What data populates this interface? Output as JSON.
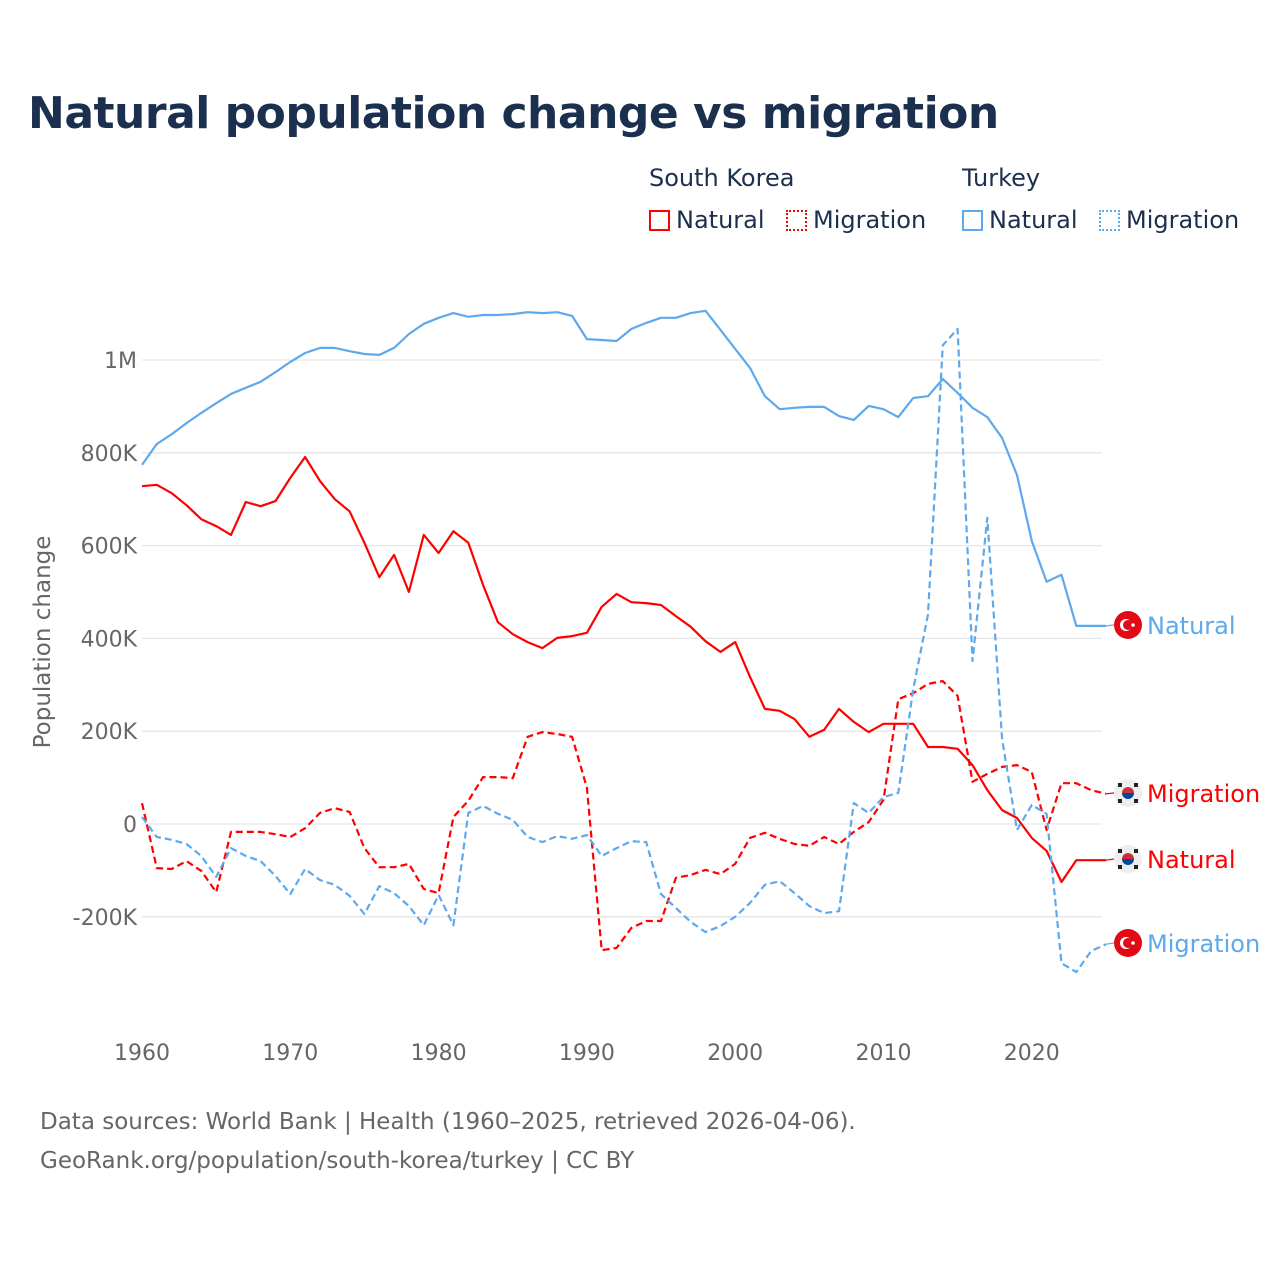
{
  "colors": {
    "south_korea": "#ff0000",
    "turkey": "#5ea8ec",
    "title": "#1b2f4e",
    "grid": "#e6e6e6",
    "axis_text": "#666666"
  },
  "legend": {
    "groups": [
      {
        "name": "South Korea",
        "items": [
          {
            "label": "Natural",
            "style": "solid"
          },
          {
            "label": "Migration",
            "style": "dotted"
          }
        ]
      },
      {
        "name": "Turkey",
        "items": [
          {
            "label": "Natural",
            "style": "solid"
          },
          {
            "label": "Migration",
            "style": "dotted"
          }
        ]
      }
    ]
  },
  "footer": {
    "line1": "Data sources: World Bank | Health (1960–2025, retrieved 2026-04-06).",
    "line2": "GeoRank.org/population/south-korea/turkey | CC BY"
  },
  "chart_data": {
    "type": "line",
    "title": "Natural population change vs migration",
    "xlabel": "",
    "ylabel": "Population change",
    "xlim": [
      1960,
      2025
    ],
    "ylim": [
      -400000,
      1150000
    ],
    "grid": true,
    "x_ticks": [
      1960,
      1970,
      1980,
      1990,
      2000,
      2010,
      2020
    ],
    "y_ticks": [
      {
        "v": -200000,
        "label": "-200K"
      },
      {
        "v": 0,
        "label": "0"
      },
      {
        "v": 200000,
        "label": "200K"
      },
      {
        "v": 400000,
        "label": "400K"
      },
      {
        "v": 600000,
        "label": "600K"
      },
      {
        "v": 800000,
        "label": "800K"
      },
      {
        "v": 1000000,
        "label": "1M"
      }
    ],
    "x_start": 1960,
    "series": [
      {
        "name": "Turkey Natural",
        "country": "turkey",
        "kind": "natural",
        "end_label": "Natural",
        "dashed": false,
        "values": [
          774000,
          819000,
          840000,
          864000,
          886000,
          907000,
          927000,
          940000,
          953000,
          974000,
          996000,
          1015000,
          1026000,
          1026000,
          1019000,
          1013000,
          1011000,
          1026000,
          1056000,
          1078000,
          1091000,
          1101000,
          1093000,
          1097000,
          1097000,
          1099000,
          1103000,
          1101000,
          1103000,
          1095000,
          1045000,
          1043000,
          1041000,
          1067000,
          1080000,
          1091000,
          1091000,
          1101000,
          1106000,
          1065000,
          1024000,
          983000,
          922000,
          894000,
          897000,
          899000,
          899000,
          879000,
          871000,
          901000,
          894000,
          877000,
          918000,
          922000,
          959000,
          929000,
          897000,
          877000,
          832000,
          752000,
          610000,
          522000,
          537000,
          427000,
          427000,
          427000
        ]
      },
      {
        "name": "South Korea Natural",
        "country": "south_korea",
        "kind": "natural",
        "end_label": "Natural",
        "dashed": false,
        "values": [
          728000,
          731000,
          713000,
          687000,
          657000,
          642000,
          623000,
          694000,
          685000,
          696000,
          746000,
          791000,
          739000,
          700000,
          674000,
          606000,
          532000,
          580000,
          500000,
          623000,
          584000,
          631000,
          606000,
          515000,
          435000,
          409000,
          392000,
          379000,
          401000,
          405000,
          412000,
          468000,
          496000,
          478000,
          476000,
          472000,
          448000,
          425000,
          394000,
          371000,
          392000,
          317000,
          248000,
          244000,
          226000,
          188000,
          203000,
          248000,
          220000,
          198000,
          216000,
          216000,
          216000,
          166000,
          166000,
          162000,
          127000,
          73000,
          30000,
          13000,
          -30000,
          -58000,
          -125000,
          -78000,
          -78000,
          -78000
        ]
      },
      {
        "name": "South Korea Migration",
        "country": "south_korea",
        "kind": "migration",
        "end_label": "Migration",
        "dashed": true,
        "values": [
          45000,
          -95000,
          -97000,
          -80000,
          -101000,
          -147000,
          -17000,
          -17000,
          -17000,
          -22000,
          -28000,
          -9000,
          24000,
          34000,
          26000,
          -52000,
          -93000,
          -93000,
          -86000,
          -140000,
          -149000,
          15000,
          50000,
          101000,
          101000,
          99000,
          188000,
          198000,
          194000,
          188000,
          78000,
          -272000,
          -267000,
          -224000,
          -209000,
          -209000,
          -116000,
          -110000,
          -99000,
          -108000,
          -86000,
          -30000,
          -19000,
          -32000,
          -43000,
          -47000,
          -28000,
          -43000,
          -17000,
          4000,
          52000,
          269000,
          282000,
          302000,
          308000,
          276000,
          91000,
          108000,
          123000,
          127000,
          112000,
          -13000,
          88000,
          88000,
          73000,
          65000
        ]
      },
      {
        "name": "Turkey Migration",
        "country": "turkey",
        "kind": "migration",
        "end_label": "Migration",
        "dashed": true,
        "values": [
          15000,
          -28000,
          -34000,
          -43000,
          -69000,
          -114000,
          -52000,
          -69000,
          -80000,
          -112000,
          -151000,
          -97000,
          -121000,
          -131000,
          -155000,
          -194000,
          -134000,
          -149000,
          -177000,
          -218000,
          -153000,
          -218000,
          24000,
          39000,
          22000,
          9000,
          -28000,
          -39000,
          -26000,
          -32000,
          -24000,
          -69000,
          -52000,
          -37000,
          -39000,
          -151000,
          -181000,
          -211000,
          -233000,
          -220000,
          -200000,
          -170000,
          -131000,
          -123000,
          -149000,
          -177000,
          -192000,
          -188000,
          45000,
          24000,
          58000,
          67000,
          290000,
          452000,
          1032000,
          1067000,
          351000,
          660000,
          183000,
          -13000,
          41000,
          22000,
          -300000,
          -319000,
          -274000,
          -259000
        ]
      }
    ],
    "end_labels_order": [
      "Turkey Natural",
      "South Korea Migration",
      "South Korea Natural",
      "Turkey Migration"
    ]
  }
}
